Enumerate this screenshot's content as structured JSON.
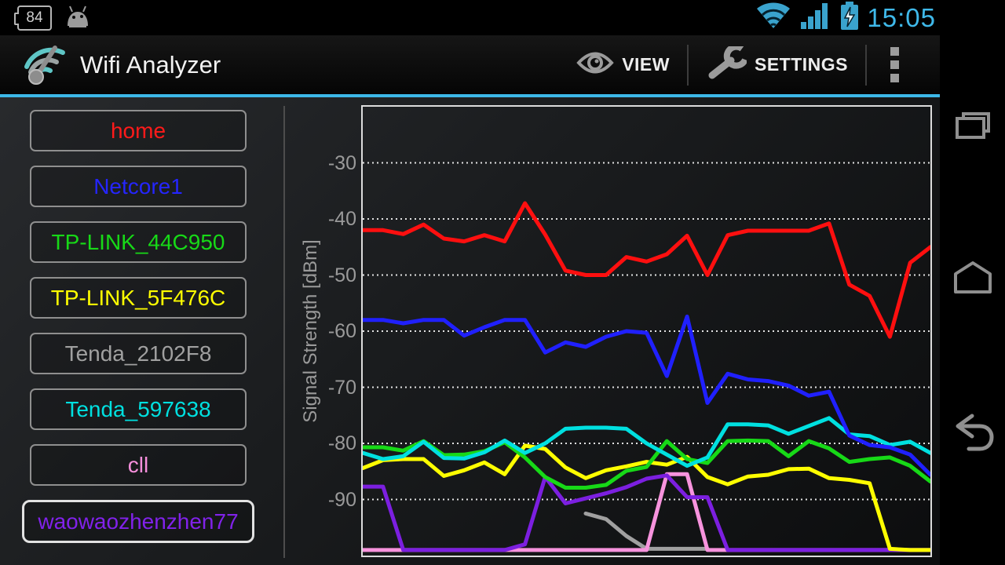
{
  "status_bar": {
    "battery_pct": "84",
    "time": "15:05",
    "left_icons": [
      "battery-level-84",
      "android-mascot"
    ],
    "right_icons": [
      "wifi-signal",
      "cell-signal",
      "battery-charging"
    ],
    "time_color": "#3fb9ea"
  },
  "action_bar": {
    "title": "Wifi Analyzer",
    "accent_color": "#3db8e8",
    "actions": [
      {
        "label": "VIEW",
        "icon": "eye-icon"
      },
      {
        "label": "SETTINGS",
        "icon": "wrench-icon"
      }
    ],
    "overflow_menu": "three-square-overflow"
  },
  "sidebar": {
    "networks": [
      {
        "label": "home",
        "color": "#ff1a1a",
        "focused": false
      },
      {
        "label": "Netcore1",
        "color": "#2525ff",
        "focused": false
      },
      {
        "label": "TP-LINK_44C950",
        "color": "#17d917",
        "focused": false
      },
      {
        "label": "TP-LINK_5F476C",
        "color": "#ffff00",
        "focused": false
      },
      {
        "label": "Tenda_2102F8",
        "color": "#a0a0a0",
        "focused": false
      },
      {
        "label": "Tenda_597638",
        "color": "#00e0e0",
        "focused": false
      },
      {
        "label": "cll",
        "color": "#f78fdc",
        "focused": false
      },
      {
        "label": "waowaozhenzhen77",
        "color": "#8122ea",
        "focused": true
      }
    ]
  },
  "chart_data": {
    "type": "line",
    "title": "",
    "xlabel": "",
    "ylabel": "Signal Strength [dBm]",
    "x_axis_labels_visible": false,
    "n_points": 29,
    "ylim": [
      -100,
      -20
    ],
    "yticks": [
      -30,
      -40,
      -50,
      -60,
      -70,
      -80,
      -90
    ],
    "grid": "horizontal-dotted-white",
    "legend_position": "sidebar-buttons",
    "series": [
      {
        "name": "Tenda_2102F8",
        "color": "#a0a0a0",
        "values": [
          null,
          null,
          null,
          null,
          null,
          null,
          null,
          null,
          null,
          null,
          null,
          -92.5,
          -93.5,
          -96.5,
          -98.8,
          -98.8,
          -98.8,
          -98.8,
          null,
          null,
          null,
          null,
          null,
          null,
          null,
          null,
          null,
          null,
          null
        ]
      },
      {
        "name": "cll",
        "color": "#f793dd",
        "values": [
          -99,
          -99,
          -99,
          -99,
          -99,
          -99,
          -99,
          -99,
          -99,
          -99,
          -99,
          -99,
          -99,
          -99,
          -99,
          -85.5,
          -85.5,
          -99,
          -99,
          -99,
          -99,
          -99,
          -99,
          -99,
          -99,
          -99,
          -99,
          -99,
          -99
        ]
      },
      {
        "name": "waowaozhenzhen77",
        "color": "#7c1fe0",
        "values": [
          -87.7,
          -87.7,
          -99,
          -99,
          -99,
          -99,
          -99,
          -99,
          -98,
          -86,
          -90.7,
          -89.8,
          -88.9,
          -87.8,
          -86.3,
          -85.7,
          -89.6,
          -89.6,
          -99,
          -99,
          -99,
          -99,
          -99,
          -99,
          -99,
          -99,
          -99,
          -99,
          -99
        ]
      },
      {
        "name": "TP-LINK_5F476C",
        "color": "#ffff00",
        "values": [
          -84.4,
          -83,
          -82.8,
          -82.8,
          -85.8,
          -84.8,
          -83.4,
          -85.5,
          -80.4,
          -81,
          -84.3,
          -86.2,
          -84.8,
          -84.1,
          -83.3,
          -83.8,
          -82.4,
          -86,
          -87.3,
          -85.9,
          -85.6,
          -84.6,
          -84.5,
          -86.2,
          -86.5,
          -87.1,
          -98.8,
          -99,
          -99
        ]
      },
      {
        "name": "TP-LINK_44C950",
        "color": "#17d917",
        "values": [
          -80.7,
          -80.7,
          -81.3,
          -79.6,
          -82.1,
          -82,
          -81.4,
          -79.8,
          -82.5,
          -86,
          -87.9,
          -87.9,
          -87.4,
          -84.9,
          -84.2,
          -79.6,
          -82.8,
          -83.5,
          -79.6,
          -79.5,
          -79.6,
          -82.3,
          -79.6,
          -80.9,
          -83.3,
          -82.8,
          -82.5,
          -84,
          -86.8
        ]
      },
      {
        "name": "Tenda_597638",
        "color": "#00e0e0",
        "values": [
          -81.7,
          -82.8,
          -82.3,
          -79.7,
          -82.6,
          -82.7,
          -81.6,
          -79.5,
          -81.7,
          -80,
          -77.4,
          -77.2,
          -77.2,
          -77.4,
          -80,
          -82,
          -84,
          -82.5,
          -76.6,
          -76.6,
          -76.8,
          -78.3,
          -76.9,
          -75.5,
          -78.4,
          -78.7,
          -80.3,
          -79.7,
          -81.7
        ]
      },
      {
        "name": "Netcore1",
        "color": "#2020ff",
        "values": [
          -58,
          -58,
          -58.6,
          -58,
          -58,
          -60.8,
          -59.3,
          -58,
          -58,
          -63.8,
          -62,
          -62.8,
          -61,
          -60,
          -60.3,
          -68,
          -57.4,
          -72.8,
          -67.6,
          -68.6,
          -68.9,
          -69.7,
          -71.5,
          -70.8,
          -78.6,
          -80.3,
          -80.7,
          -82,
          -85.6
        ]
      },
      {
        "name": "home",
        "color": "#ff0f0f",
        "values": [
          -42,
          -42,
          -42.7,
          -41,
          -43.5,
          -44,
          -42.9,
          -44,
          -37.2,
          -42.8,
          -49.2,
          -50,
          -50,
          -46.8,
          -47.6,
          -46.3,
          -43,
          -50,
          -42.9,
          -42.1,
          -42.1,
          -42.1,
          -42.1,
          -40.8,
          -51.7,
          -53.7,
          -61,
          -47.8,
          -45
        ]
      }
    ]
  },
  "nav_bar": {
    "buttons": [
      {
        "name": "recent-apps"
      },
      {
        "name": "home"
      },
      {
        "name": "back"
      }
    ]
  }
}
